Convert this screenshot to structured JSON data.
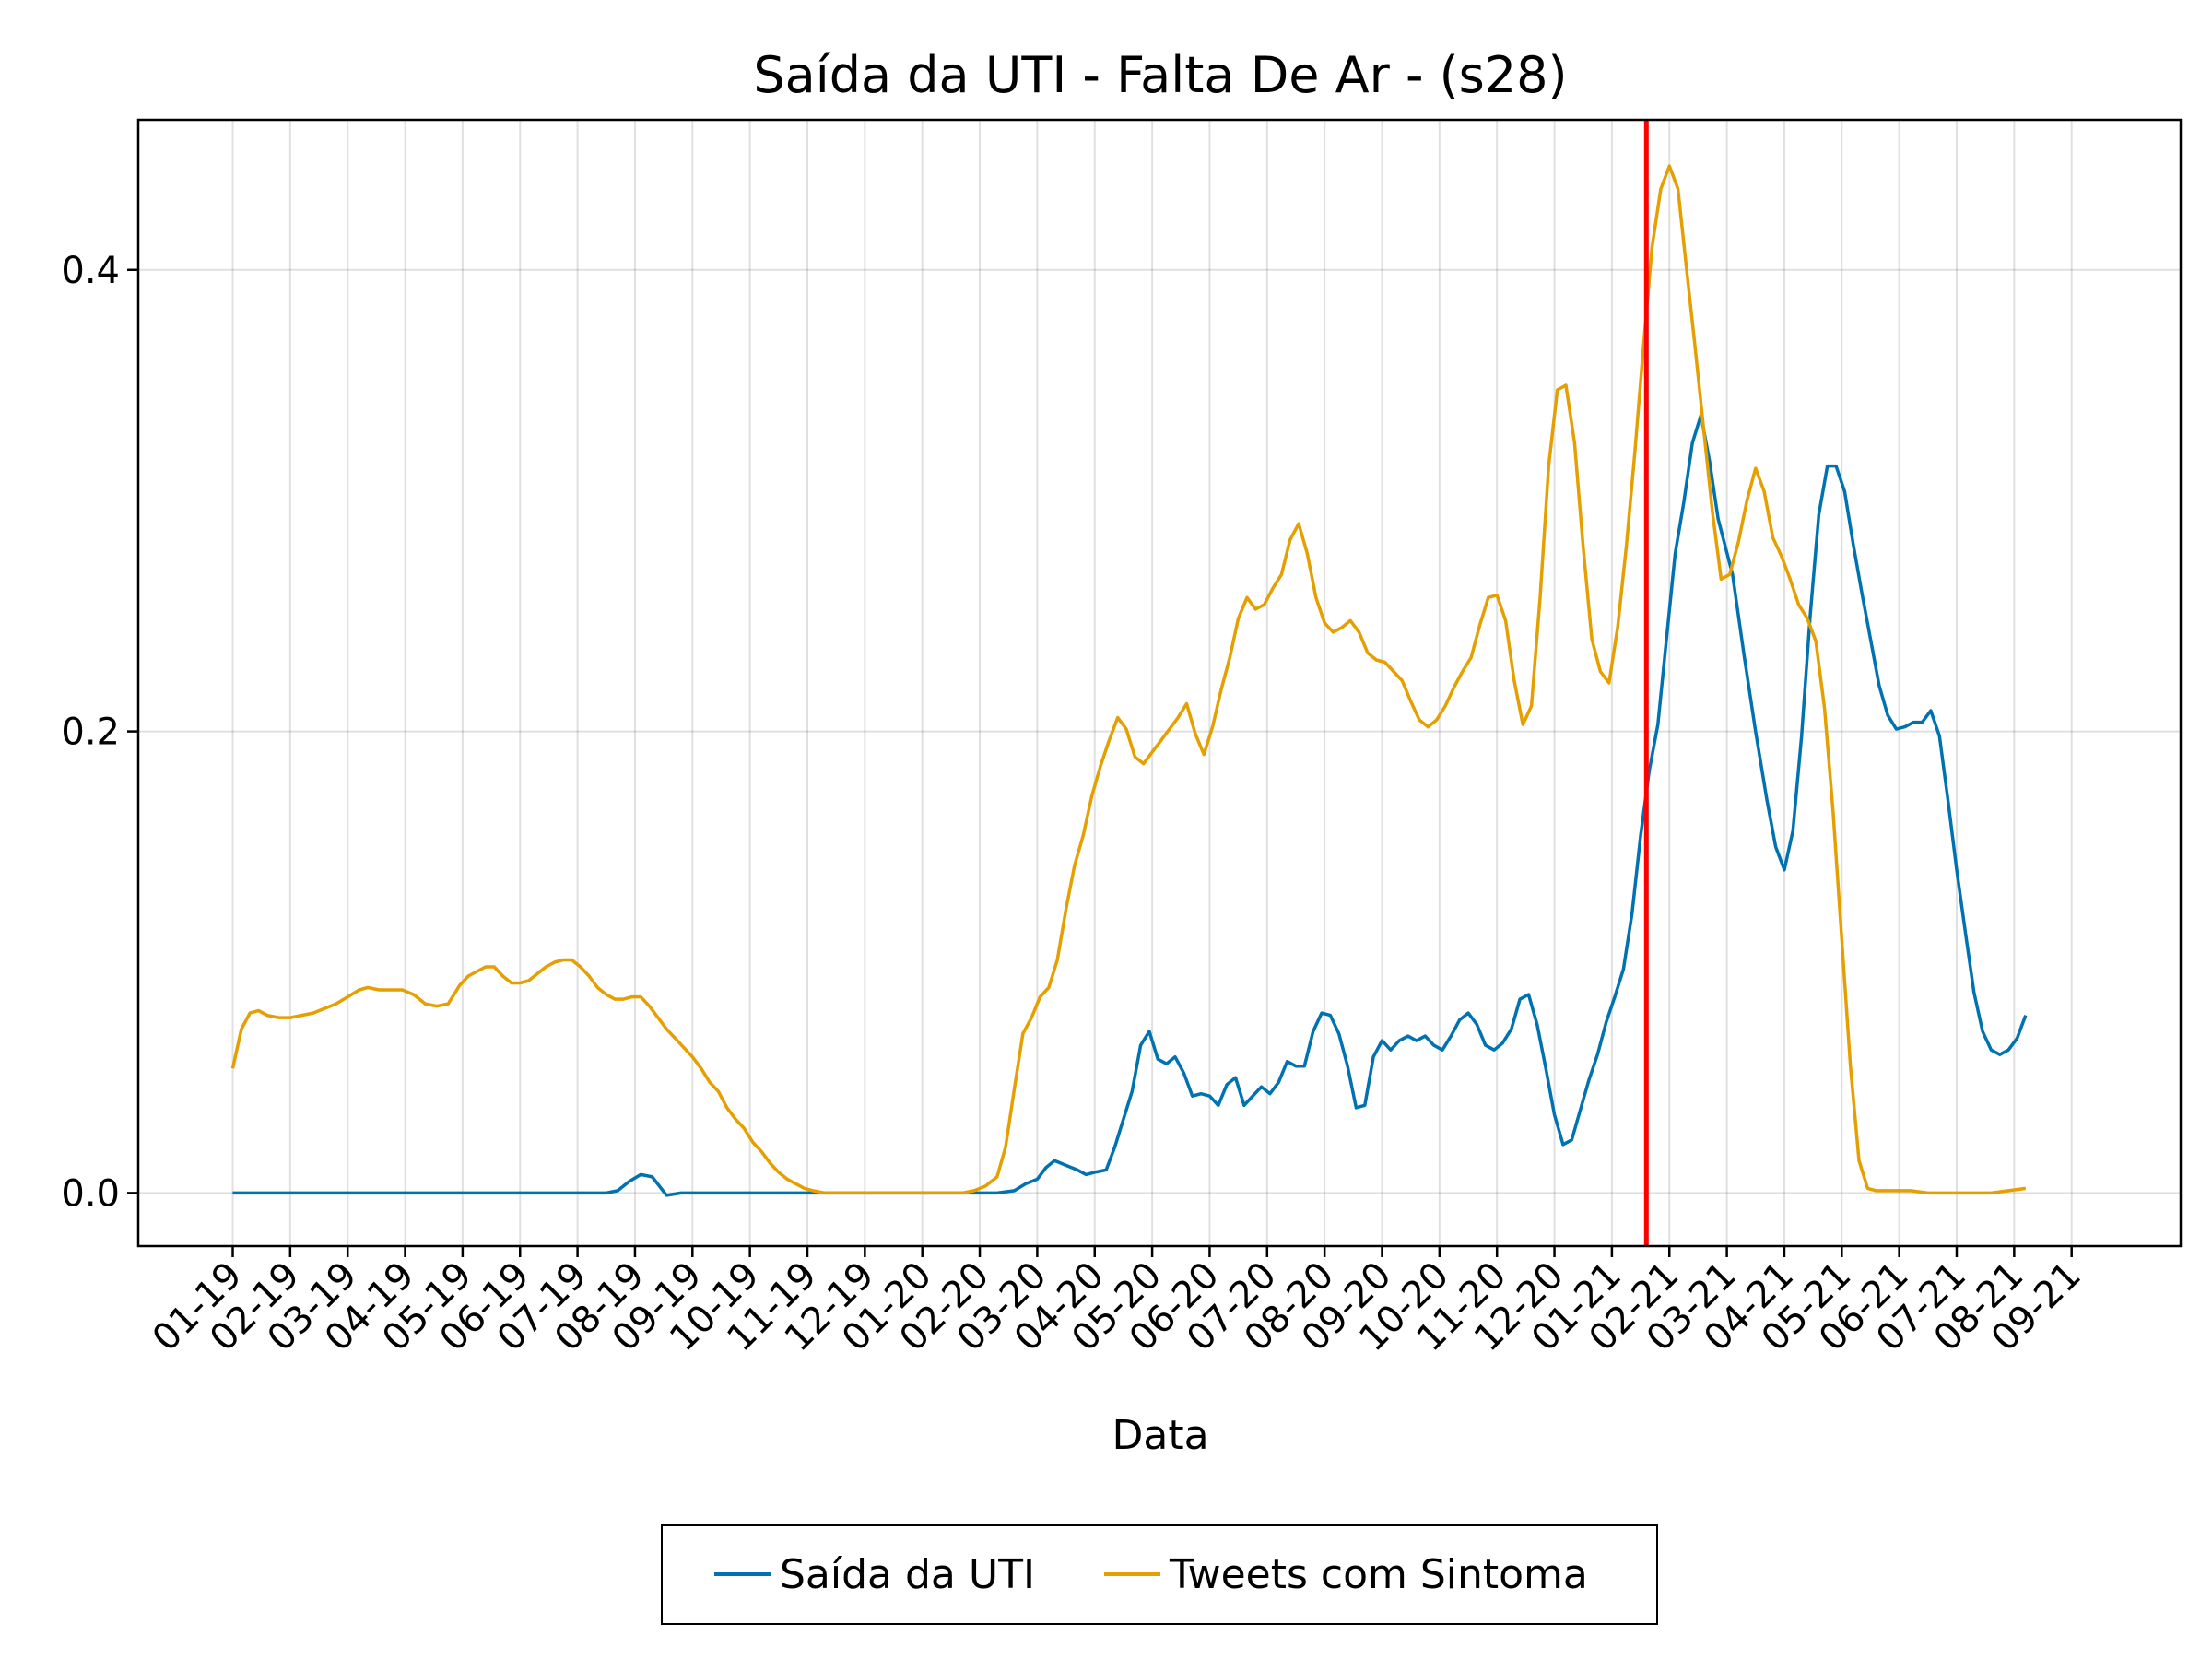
{
  "chart_data": {
    "type": "line",
    "title": "Saída da UTI - Falta De Ar - (s28)",
    "xlabel": "Data",
    "ylabel": "",
    "ylim": [
      -0.023,
      0.465
    ],
    "yticks": [
      0.0,
      0.2,
      0.4
    ],
    "ytick_labels": [
      "0.0",
      "0.2",
      "0.4"
    ],
    "xticks": [
      "01-19",
      "02-19",
      "03-19",
      "04-19",
      "05-19",
      "06-19",
      "07-19",
      "08-19",
      "09-19",
      "10-19",
      "11-19",
      "12-19",
      "01-20",
      "02-20",
      "03-20",
      "04-20",
      "05-20",
      "06-20",
      "07-20",
      "08-20",
      "09-20",
      "10-20",
      "11-20",
      "12-20",
      "01-21",
      "02-21",
      "03-21",
      "04-21",
      "05-21",
      "06-21",
      "07-21",
      "08-21",
      "09-21"
    ],
    "grid": true,
    "legend_position": "bottom-center",
    "vline": {
      "month_index": 24.6,
      "color": "#ff0000"
    },
    "series": [
      {
        "name": "Saída da UTI",
        "color": "#0072b2",
        "points": [
          [
            0,
            0
          ],
          [
            6.5,
            0
          ],
          [
            6.7,
            0.001
          ],
          [
            6.9,
            0.005
          ],
          [
            7.1,
            0.008
          ],
          [
            7.3,
            0.007
          ],
          [
            7.55,
            -0.001
          ],
          [
            7.8,
            0
          ],
          [
            13.3,
            0
          ],
          [
            13.6,
            0.001
          ],
          [
            13.8,
            0.004
          ],
          [
            14.0,
            0.006
          ],
          [
            14.15,
            0.011
          ],
          [
            14.3,
            0.014
          ],
          [
            14.5,
            0.012
          ],
          [
            14.7,
            0.01
          ],
          [
            14.85,
            0.008
          ],
          [
            15.0,
            0.009
          ],
          [
            15.2,
            0.01
          ],
          [
            15.35,
            0.02
          ],
          [
            15.5,
            0.032
          ],
          [
            15.65,
            0.044
          ],
          [
            15.8,
            0.064
          ],
          [
            15.95,
            0.07
          ],
          [
            16.1,
            0.058
          ],
          [
            16.25,
            0.056
          ],
          [
            16.4,
            0.059
          ],
          [
            16.55,
            0.052
          ],
          [
            16.7,
            0.042
          ],
          [
            16.85,
            0.043
          ],
          [
            17.0,
            0.042
          ],
          [
            17.15,
            0.038
          ],
          [
            17.3,
            0.047
          ],
          [
            17.45,
            0.05
          ],
          [
            17.6,
            0.038
          ],
          [
            17.75,
            0.042
          ],
          [
            17.9,
            0.046
          ],
          [
            18.05,
            0.043
          ],
          [
            18.2,
            0.048
          ],
          [
            18.35,
            0.057
          ],
          [
            18.5,
            0.055
          ],
          [
            18.65,
            0.055
          ],
          [
            18.8,
            0.07
          ],
          [
            18.95,
            0.078
          ],
          [
            19.1,
            0.077
          ],
          [
            19.25,
            0.069
          ],
          [
            19.4,
            0.055
          ],
          [
            19.55,
            0.037
          ],
          [
            19.7,
            0.038
          ],
          [
            19.85,
            0.059
          ],
          [
            20.0,
            0.066
          ],
          [
            20.15,
            0.062
          ],
          [
            20.3,
            0.066
          ],
          [
            20.45,
            0.068
          ],
          [
            20.6,
            0.066
          ],
          [
            20.75,
            0.068
          ],
          [
            20.9,
            0.064
          ],
          [
            21.05,
            0.062
          ],
          [
            21.2,
            0.068
          ],
          [
            21.35,
            0.075
          ],
          [
            21.5,
            0.078
          ],
          [
            21.65,
            0.073
          ],
          [
            21.8,
            0.064
          ],
          [
            21.95,
            0.062
          ],
          [
            22.1,
            0.065
          ],
          [
            22.25,
            0.071
          ],
          [
            22.4,
            0.084
          ],
          [
            22.55,
            0.086
          ],
          [
            22.7,
            0.073
          ],
          [
            22.85,
            0.054
          ],
          [
            23.0,
            0.034
          ],
          [
            23.15,
            0.021
          ],
          [
            23.3,
            0.023
          ],
          [
            23.45,
            0.036
          ],
          [
            23.6,
            0.049
          ],
          [
            23.75,
            0.06
          ],
          [
            23.9,
            0.074
          ],
          [
            24.05,
            0.085
          ],
          [
            24.2,
            0.097
          ],
          [
            24.35,
            0.121
          ],
          [
            24.5,
            0.155
          ],
          [
            24.65,
            0.183
          ],
          [
            24.8,
            0.203
          ],
          [
            24.95,
            0.24
          ],
          [
            25.1,
            0.277
          ],
          [
            25.25,
            0.299
          ],
          [
            25.4,
            0.325
          ],
          [
            25.55,
            0.337
          ],
          [
            25.7,
            0.317
          ],
          [
            25.85,
            0.292
          ],
          [
            26.1,
            0.268
          ],
          [
            26.3,
            0.233
          ],
          [
            26.5,
            0.2
          ],
          [
            26.7,
            0.17
          ],
          [
            26.85,
            0.15
          ],
          [
            27.0,
            0.14
          ],
          [
            27.15,
            0.157
          ],
          [
            27.3,
            0.198
          ],
          [
            27.45,
            0.25
          ],
          [
            27.6,
            0.294
          ],
          [
            27.75,
            0.315
          ],
          [
            27.9,
            0.315
          ],
          [
            28.05,
            0.304
          ],
          [
            28.2,
            0.281
          ],
          [
            28.35,
            0.26
          ],
          [
            28.5,
            0.24
          ],
          [
            28.65,
            0.22
          ],
          [
            28.8,
            0.207
          ],
          [
            28.95,
            0.201
          ],
          [
            29.1,
            0.202
          ],
          [
            29.25,
            0.204
          ],
          [
            29.4,
            0.204
          ],
          [
            29.55,
            0.209
          ],
          [
            29.7,
            0.198
          ],
          [
            29.85,
            0.17
          ],
          [
            30.0,
            0.14
          ],
          [
            30.15,
            0.113
          ],
          [
            30.3,
            0.087
          ],
          [
            30.45,
            0.07
          ],
          [
            30.6,
            0.062
          ],
          [
            30.75,
            0.06
          ],
          [
            30.9,
            0.062
          ],
          [
            31.05,
            0.067
          ],
          [
            31.2,
            0.077
          ]
        ]
      },
      {
        "name": "Tweets com Sintoma",
        "color": "#e69f00",
        "points": [
          [
            0,
            0.054
          ],
          [
            0.15,
            0.071
          ],
          [
            0.3,
            0.078
          ],
          [
            0.45,
            0.079
          ],
          [
            0.6,
            0.077
          ],
          [
            0.8,
            0.076
          ],
          [
            1.0,
            0.076
          ],
          [
            1.2,
            0.077
          ],
          [
            1.4,
            0.078
          ],
          [
            1.6,
            0.08
          ],
          [
            1.8,
            0.082
          ],
          [
            2.0,
            0.085
          ],
          [
            2.2,
            0.088
          ],
          [
            2.35,
            0.089
          ],
          [
            2.55,
            0.088
          ],
          [
            2.75,
            0.088
          ],
          [
            2.95,
            0.088
          ],
          [
            3.15,
            0.086
          ],
          [
            3.35,
            0.082
          ],
          [
            3.55,
            0.081
          ],
          [
            3.75,
            0.082
          ],
          [
            3.95,
            0.09
          ],
          [
            4.1,
            0.094
          ],
          [
            4.25,
            0.096
          ],
          [
            4.4,
            0.098
          ],
          [
            4.55,
            0.098
          ],
          [
            4.7,
            0.094
          ],
          [
            4.85,
            0.091
          ],
          [
            5.0,
            0.091
          ],
          [
            5.15,
            0.092
          ],
          [
            5.3,
            0.095
          ],
          [
            5.45,
            0.098
          ],
          [
            5.6,
            0.1
          ],
          [
            5.75,
            0.101
          ],
          [
            5.9,
            0.101
          ],
          [
            6.05,
            0.098
          ],
          [
            6.2,
            0.094
          ],
          [
            6.35,
            0.089
          ],
          [
            6.5,
            0.086
          ],
          [
            6.65,
            0.084
          ],
          [
            6.8,
            0.084
          ],
          [
            6.95,
            0.085
          ],
          [
            7.1,
            0.085
          ],
          [
            7.25,
            0.081
          ],
          [
            7.4,
            0.076
          ],
          [
            7.55,
            0.071
          ],
          [
            7.7,
            0.067
          ],
          [
            7.85,
            0.063
          ],
          [
            8.0,
            0.059
          ],
          [
            8.15,
            0.054
          ],
          [
            8.3,
            0.048
          ],
          [
            8.45,
            0.044
          ],
          [
            8.6,
            0.037
          ],
          [
            8.75,
            0.032
          ],
          [
            8.9,
            0.028
          ],
          [
            9.05,
            0.022
          ],
          [
            9.2,
            0.018
          ],
          [
            9.35,
            0.013
          ],
          [
            9.5,
            0.009
          ],
          [
            9.65,
            0.006
          ],
          [
            9.8,
            0.004
          ],
          [
            9.95,
            0.002
          ],
          [
            10.1,
            0.001
          ],
          [
            10.3,
            0
          ],
          [
            12.7,
            0
          ],
          [
            12.9,
            0.001
          ],
          [
            13.1,
            0.003
          ],
          [
            13.3,
            0.007
          ],
          [
            13.45,
            0.02
          ],
          [
            13.6,
            0.045
          ],
          [
            13.75,
            0.069
          ],
          [
            13.9,
            0.076
          ],
          [
            14.05,
            0.085
          ],
          [
            14.2,
            0.089
          ],
          [
            14.35,
            0.101
          ],
          [
            14.5,
            0.123
          ],
          [
            14.65,
            0.142
          ],
          [
            14.8,
            0.155
          ],
          [
            14.95,
            0.172
          ],
          [
            15.1,
            0.185
          ],
          [
            15.25,
            0.196
          ],
          [
            15.4,
            0.206
          ],
          [
            15.55,
            0.201
          ],
          [
            15.7,
            0.189
          ],
          [
            15.85,
            0.186
          ],
          [
            16.0,
            0.191
          ],
          [
            16.15,
            0.196
          ],
          [
            16.3,
            0.201
          ],
          [
            16.45,
            0.206
          ],
          [
            16.6,
            0.212
          ],
          [
            16.75,
            0.199
          ],
          [
            16.9,
            0.19
          ],
          [
            17.05,
            0.202
          ],
          [
            17.2,
            0.218
          ],
          [
            17.35,
            0.232
          ],
          [
            17.5,
            0.249
          ],
          [
            17.65,
            0.258
          ],
          [
            17.8,
            0.253
          ],
          [
            17.95,
            0.255
          ],
          [
            18.1,
            0.262
          ],
          [
            18.25,
            0.268
          ],
          [
            18.4,
            0.283
          ],
          [
            18.55,
            0.29
          ],
          [
            18.7,
            0.277
          ],
          [
            18.85,
            0.258
          ],
          [
            19.0,
            0.247
          ],
          [
            19.15,
            0.243
          ],
          [
            19.3,
            0.245
          ],
          [
            19.45,
            0.248
          ],
          [
            19.6,
            0.243
          ],
          [
            19.75,
            0.234
          ],
          [
            19.9,
            0.231
          ],
          [
            20.05,
            0.23
          ],
          [
            20.2,
            0.226
          ],
          [
            20.35,
            0.222
          ],
          [
            20.5,
            0.213
          ],
          [
            20.65,
            0.205
          ],
          [
            20.8,
            0.202
          ],
          [
            20.95,
            0.205
          ],
          [
            21.1,
            0.211
          ],
          [
            21.25,
            0.219
          ],
          [
            21.4,
            0.226
          ],
          [
            21.55,
            0.232
          ],
          [
            21.7,
            0.246
          ],
          [
            21.85,
            0.258
          ],
          [
            22.0,
            0.259
          ],
          [
            22.15,
            0.248
          ],
          [
            22.3,
            0.222
          ],
          [
            22.45,
            0.203
          ],
          [
            22.6,
            0.211
          ],
          [
            22.75,
            0.258
          ],
          [
            22.9,
            0.315
          ],
          [
            23.05,
            0.348
          ],
          [
            23.2,
            0.35
          ],
          [
            23.35,
            0.325
          ],
          [
            23.5,
            0.28
          ],
          [
            23.65,
            0.24
          ],
          [
            23.8,
            0.226
          ],
          [
            23.95,
            0.221
          ],
          [
            24.1,
            0.245
          ],
          [
            24.25,
            0.28
          ],
          [
            24.4,
            0.321
          ],
          [
            24.55,
            0.367
          ],
          [
            24.7,
            0.41
          ],
          [
            24.85,
            0.435
          ],
          [
            25.0,
            0.445
          ],
          [
            25.15,
            0.435
          ],
          [
            25.3,
            0.4
          ],
          [
            25.45,
            0.366
          ],
          [
            25.6,
            0.33
          ],
          [
            25.75,
            0.295
          ],
          [
            25.9,
            0.266
          ],
          [
            26.05,
            0.268
          ],
          [
            26.2,
            0.282
          ],
          [
            26.35,
            0.3
          ],
          [
            26.5,
            0.314
          ],
          [
            26.65,
            0.304
          ],
          [
            26.8,
            0.284
          ],
          [
            26.95,
            0.276
          ],
          [
            27.1,
            0.266
          ],
          [
            27.25,
            0.255
          ],
          [
            27.4,
            0.249
          ],
          [
            27.55,
            0.239
          ],
          [
            27.7,
            0.21
          ],
          [
            27.85,
            0.165
          ],
          [
            28.0,
            0.11
          ],
          [
            28.15,
            0.055
          ],
          [
            28.3,
            0.014
          ],
          [
            28.45,
            0.002
          ],
          [
            28.6,
            0.001
          ],
          [
            29.2,
            0.001
          ],
          [
            29.5,
            0
          ],
          [
            30.3,
            0
          ],
          [
            30.6,
            0
          ],
          [
            30.9,
            0.001
          ],
          [
            31.2,
            0.002
          ]
        ]
      }
    ]
  }
}
